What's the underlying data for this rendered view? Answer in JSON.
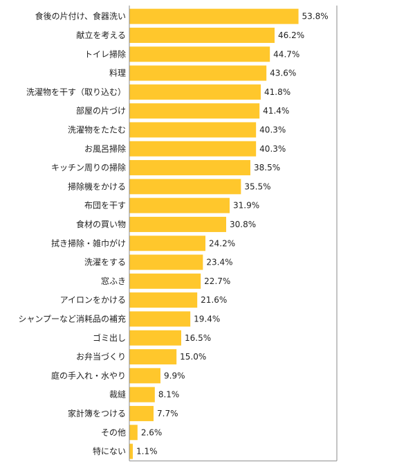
{
  "chart_data": {
    "type": "bar",
    "orientation": "horizontal",
    "title": "",
    "xlabel": "",
    "ylabel": "",
    "xlim": [
      0,
      66
    ],
    "grid": false,
    "legend": "none",
    "value_suffix": "%",
    "bar_color": "#FFC72C",
    "categories": [
      "食後の片付け、食器洗い",
      "献立を考える",
      "トイレ掃除",
      "料理",
      "洗濯物を干す（取り込む）",
      "部屋の片づけ",
      "洗濯物をたたむ",
      "お風呂掃除",
      "キッチン周りの掃除",
      "掃除機をかける",
      "布団を干す",
      "食材の買い物",
      "拭き掃除・雑巾がけ",
      "洗濯をする",
      "窓ふき",
      "アイロンをかける",
      "シャンプーなど消耗品の補充",
      "ゴミ出し",
      "お弁当づくり",
      "庭の手入れ・水やり",
      "裁縫",
      "家計簿をつける",
      "その他",
      "特にない"
    ],
    "values": [
      53.8,
      46.2,
      44.7,
      43.6,
      41.8,
      41.4,
      40.3,
      40.3,
      38.5,
      35.5,
      31.9,
      30.8,
      24.2,
      23.4,
      22.7,
      21.6,
      19.4,
      16.5,
      15.0,
      9.9,
      8.1,
      7.7,
      2.6,
      1.1
    ]
  }
}
